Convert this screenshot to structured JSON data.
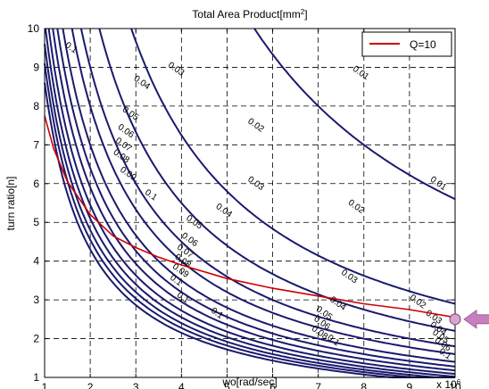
{
  "chart_data": {
    "type": "line",
    "title": "Total Area Product[mm",
    "title_sup": "2",
    "title_end": "]",
    "xlabel": "wo[rad/sec]",
    "ylabel": "turn ratio[n]",
    "x_exponent_label": "x 10",
    "x_exponent_sup": "6",
    "xlim": [
      1,
      10
    ],
    "ylim": [
      1,
      10
    ],
    "xticks": [
      1,
      2,
      3,
      4,
      5,
      6,
      7,
      8,
      9,
      10
    ],
    "yticks": [
      1,
      2,
      3,
      4,
      5,
      6,
      7,
      8,
      9,
      10
    ],
    "grid": true,
    "grid_style": "dashed",
    "contour_color": "#1a1a6e",
    "contour_levels": [
      {
        "level": 0.01,
        "label": "0.01",
        "k": 56
      },
      {
        "level": 0.02,
        "label": "0.02",
        "k": 29
      },
      {
        "level": 0.03,
        "label": "0.03",
        "k": 22
      },
      {
        "level": 0.04,
        "label": "0.04",
        "k": 18
      },
      {
        "level": 0.05,
        "label": "0.05",
        "k": 16
      },
      {
        "level": 0.06,
        "label": "0.06",
        "k": 14
      },
      {
        "level": 0.07,
        "label": "0.07",
        "k": 12.8
      },
      {
        "level": 0.08,
        "label": "0.08",
        "k": 11.8
      },
      {
        "level": 0.09,
        "label": "0.09",
        "k": 10.9
      },
      {
        "level": 0.1,
        "label": "0.1",
        "k": 10.2
      },
      {
        "level": 0.1,
        "label": "0.1",
        "k": 9.6
      },
      {
        "level": 0.1,
        "label": "0.1",
        "k": 9.1
      },
      {
        "level": 0.1,
        "label": "0.1",
        "k": 8.6
      }
    ],
    "contour_labels": [
      {
        "text": "0.1",
        "x": 1.55,
        "y": 9.45
      },
      {
        "text": "0.03",
        "x": 3.85,
        "y": 8.9
      },
      {
        "text": "0.04",
        "x": 3.1,
        "y": 8.55
      },
      {
        "text": "0.05",
        "x": 2.85,
        "y": 7.75
      },
      {
        "text": "0.06",
        "x": 2.75,
        "y": 7.3
      },
      {
        "text": "0.07",
        "x": 2.7,
        "y": 6.95
      },
      {
        "text": "0.08",
        "x": 2.65,
        "y": 6.65
      },
      {
        "text": "0.09",
        "x": 2.8,
        "y": 6.2
      },
      {
        "text": "0.1",
        "x": 3.3,
        "y": 5.65
      },
      {
        "text": "0.01",
        "x": 7.9,
        "y": 8.8
      },
      {
        "text": "0.02",
        "x": 5.6,
        "y": 7.45
      },
      {
        "text": "0.03",
        "x": 5.6,
        "y": 5.95
      },
      {
        "text": "0.04",
        "x": 4.9,
        "y": 5.25
      },
      {
        "text": "0.05",
        "x": 4.25,
        "y": 4.95
      },
      {
        "text": "0.06",
        "x": 4.15,
        "y": 4.5
      },
      {
        "text": "0.07",
        "x": 4.05,
        "y": 4.2
      },
      {
        "text": "0.08",
        "x": 4.0,
        "y": 3.95
      },
      {
        "text": "0.09",
        "x": 3.95,
        "y": 3.7
      },
      {
        "text": "0.1",
        "x": 3.85,
        "y": 3.45
      },
      {
        "text": "0.1",
        "x": 4.0,
        "y": 3.0
      },
      {
        "text": "0.1",
        "x": 4.75,
        "y": 2.6
      },
      {
        "text": "0.01",
        "x": 9.6,
        "y": 5.95
      },
      {
        "text": "0.02",
        "x": 7.8,
        "y": 5.35
      },
      {
        "text": "0.03",
        "x": 7.65,
        "y": 3.55
      },
      {
        "text": "0.04",
        "x": 7.4,
        "y": 2.85
      },
      {
        "text": "0.05",
        "x": 7.1,
        "y": 2.6
      },
      {
        "text": "0.06",
        "x": 7.05,
        "y": 2.35
      },
      {
        "text": "0.08",
        "x": 7.0,
        "y": 2.1
      },
      {
        "text": "0.1",
        "x": 7.3,
        "y": 1.9
      },
      {
        "text": "0.02",
        "x": 9.15,
        "y": 2.9
      },
      {
        "text": "0.03",
        "x": 9.5,
        "y": 2.5
      },
      {
        "text": "0.04",
        "x": 9.6,
        "y": 2.2
      },
      {
        "text": "0.05",
        "x": 9.65,
        "y": 2.0
      },
      {
        "text": "0.06",
        "x": 9.7,
        "y": 1.8
      },
      {
        "text": "0.1",
        "x": 9.75,
        "y": 1.55
      }
    ],
    "series": [
      {
        "name": "Q=10",
        "color": "#cc0000",
        "x": [
          1.0,
          1.2,
          1.5,
          2.0,
          2.5,
          3.0,
          3.5,
          4.0,
          5.0,
          6.0,
          7.0,
          8.0,
          9.0,
          10.0
        ],
        "y": [
          7.75,
          6.9,
          6.05,
          5.2,
          4.65,
          4.35,
          4.1,
          3.9,
          3.55,
          3.3,
          3.1,
          2.9,
          2.75,
          2.55
        ]
      }
    ],
    "legend": {
      "position": "top-right",
      "entries": [
        "Q=10"
      ]
    },
    "markers": [
      {
        "name": "highlight-point",
        "x": 10.0,
        "y": 2.5,
        "color": "#d6a6cf"
      }
    ],
    "annotation_arrow": {
      "color": "#c77fc0",
      "direction": "left",
      "points_to": {
        "x": 10.0,
        "y": 2.5
      }
    }
  }
}
